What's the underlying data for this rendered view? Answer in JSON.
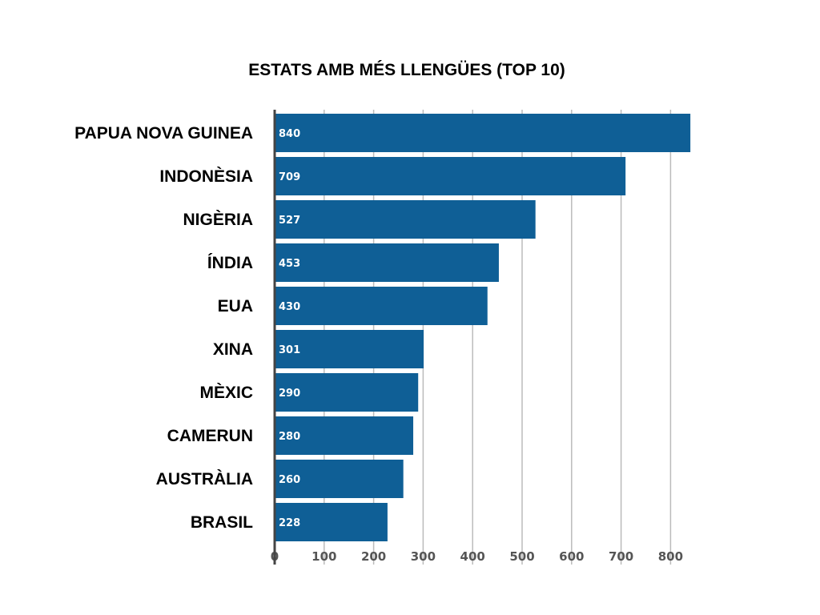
{
  "chart_data": {
    "type": "bar",
    "orientation": "horizontal",
    "title": "ESTATS AMB MÉS LLENGÜES (TOP 10)",
    "categories": [
      "PAPUA NOVA GUINEA",
      "INDONÈSIA",
      "NIGÈRIA",
      "ÍNDIA",
      "EUA",
      "XINA",
      "MÈXIC",
      "CAMERUN",
      "AUSTRÀLIA",
      "BRASIL"
    ],
    "values": [
      840,
      709,
      527,
      453,
      430,
      301,
      290,
      280,
      260,
      228
    ],
    "xticks": [
      0,
      100,
      200,
      300,
      400,
      500,
      600,
      700,
      800
    ],
    "xlim": [
      0,
      800
    ],
    "xlabel": "",
    "ylabel": "",
    "grid": true,
    "bar_color": "#0f5f96",
    "grid_color": "#bbbbbb"
  }
}
